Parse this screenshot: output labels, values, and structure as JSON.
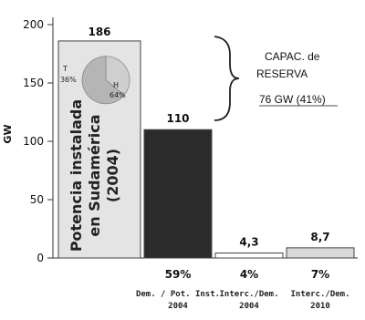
{
  "chart_data": {
    "type": "bar",
    "ylabel": "GW",
    "ylim": [
      0,
      200
    ],
    "yticks": [
      0,
      50,
      100,
      150,
      200
    ],
    "bars": [
      {
        "value": 186,
        "label": "186",
        "pct": "",
        "sub1": "",
        "sub2": "",
        "fill": "#e4e4e4",
        "inner_text": [
          "Potencia instalada",
          "en Sudamérica",
          "(2004)"
        ],
        "pie": {
          "a_label": "T",
          "a_pct": "36%",
          "b_label": "H",
          "b_pct": "64%",
          "a_value": 36,
          "b_value": 64
        }
      },
      {
        "value": 110,
        "label": "110",
        "pct": "59%",
        "sub1": "Dem. / Pot. Inst.",
        "sub2": "2004",
        "fill": "#2b2b2b"
      },
      {
        "value": 4.3,
        "label": "4,3",
        "pct": "4%",
        "sub1": "Interc./Dem.",
        "sub2": "2004",
        "fill": "#ffffff"
      },
      {
        "value": 8.7,
        "label": "8,7",
        "pct": "7%",
        "sub1": "Interc./Dem.",
        "sub2": "2010",
        "fill": "#d9d9d9"
      }
    ],
    "reserve_annotation": {
      "line1": "CAPAC. de",
      "line2": "RESERVA",
      "line3": "76 GW  (41%)"
    },
    "colors": {
      "axis": "#333333",
      "bar_outline": "#444444"
    }
  }
}
